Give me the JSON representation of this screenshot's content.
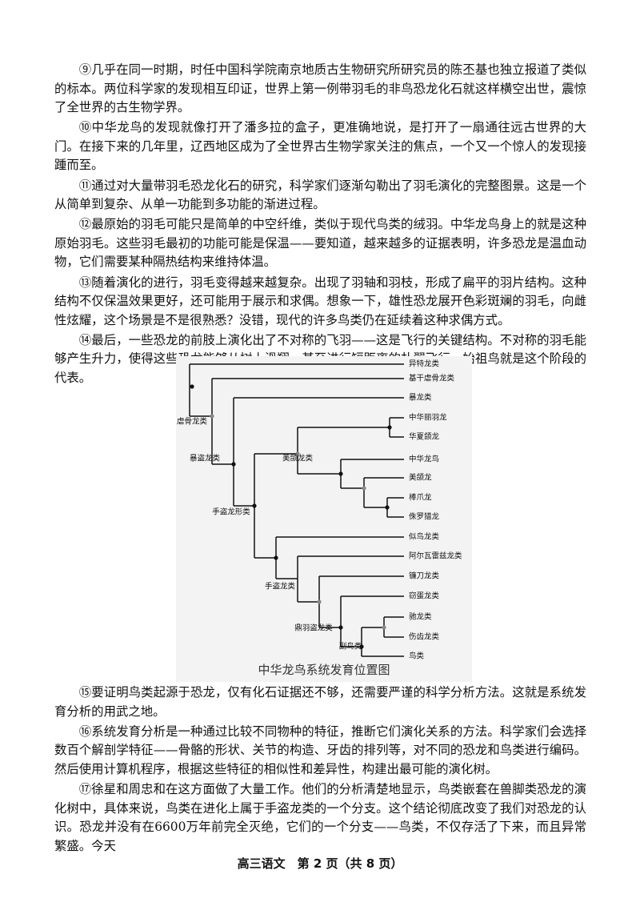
{
  "paragraphs_top": [
    "⑨几乎在同一时期，时任中国科学院南京地质古生物研究所研究员的陈丕基也独立报道了类似的标本。两位科学家的发现相互印证，世界上第一例带羽毛的非鸟恐龙化石就这样横空出世，震惊了全世界的古生物学界。",
    "⑩中华龙鸟的发现就像打开了潘多拉的盒子，更准确地说，是打开了一扇通往远古世界的大门。在接下来的几年里，辽西地区成为了全世界古生物学家关注的焦点，一个又一个惊人的发现接踵而至。",
    "⑪通过对大量带羽毛恐龙化石的研究，科学家们逐渐勾勒出了羽毛演化的完整图景。这是一个从简单到复杂、从单一功能到多功能的渐进过程。",
    "⑫最原始的羽毛可能只是简单的中空纤维，类似于现代鸟类的绒羽。中华龙鸟身上的就是这种原始羽毛。这些羽毛最初的功能可能是保温——要知道，越来越多的证据表明，许多恐龙是温血动物，它们需要某种隔热结构来维持体温。",
    "⑬随着演化的进行，羽毛变得越来越复杂。出现了羽轴和羽枝，形成了扁平的羽片结构。这种结构不仅保温效果更好，还可能用于展示和求偶。想象一下，雄性恐龙展开色彩斑斓的羽毛，向雌性炫耀，这个场景是不是很熟悉？没错，现代的许多鸟类仍在延续着这种求偶方式。",
    "⑭最后，一些恐龙的前肢上演化出了不对称的飞羽——这是飞行的关键结构。不对称的羽毛能够产生升力，使得这些恐龙能够从树上滑翔，甚至进行短距离的扑翼飞行。始祖鸟就是这个阶段的代表。"
  ],
  "figure": {
    "leaves": [
      "异特龙类",
      "基干虐骨龙类",
      "暴龙类",
      "中华丽羽龙",
      "华夏颌龙",
      "中华龙鸟",
      "美颌龙",
      "棒爪龙",
      "侏罗猎龙",
      "似鸟龙类",
      "阿尔瓦雷兹龙类",
      "镰刀龙类",
      "窃蛋龙类",
      "驰龙类",
      "伤齿龙类",
      "鸟类"
    ],
    "clades": [
      "虐骨龙类",
      "暴盗龙类",
      "美颌龙类",
      "手盗龙形类",
      "手盗龙类",
      "鼎羽盗龙类",
      "副鸟类"
    ],
    "caption": "中华龙鸟系统发育位置图"
  },
  "paragraphs_bottom": [
    "⑮要证明鸟类起源于恐龙，仅有化石证据还不够，还需要严谨的科学分析方法。这就是系统发育分析的用武之地。",
    "⑯系统发育分析是一种通过比较不同物种的特征，推断它们演化关系的方法。科学家们会选择数百个解剖学特征——骨骼的形状、关节的构造、牙齿的排列等，对不同的恐龙和鸟类进行编码。然后使用计算机程序，根据这些特征的相似性和差异性，构建出最可能的演化树。",
    "⑰徐星和周忠和在这方面做了大量工作。他们的分析清楚地显示，鸟类嵌套在兽脚类恐龙的演化树中，具体来说，鸟类在进化上属于手盗龙类的一个分支。这个结论彻底改变了我们对恐龙的认识。恐龙并没有在6600万年前完全灭绝，它们的一个分支——鸟类，不仅存活了下来，而且异常繁盛。今天"
  ],
  "footer": "高三语文　第 2 页（共 8 页）"
}
